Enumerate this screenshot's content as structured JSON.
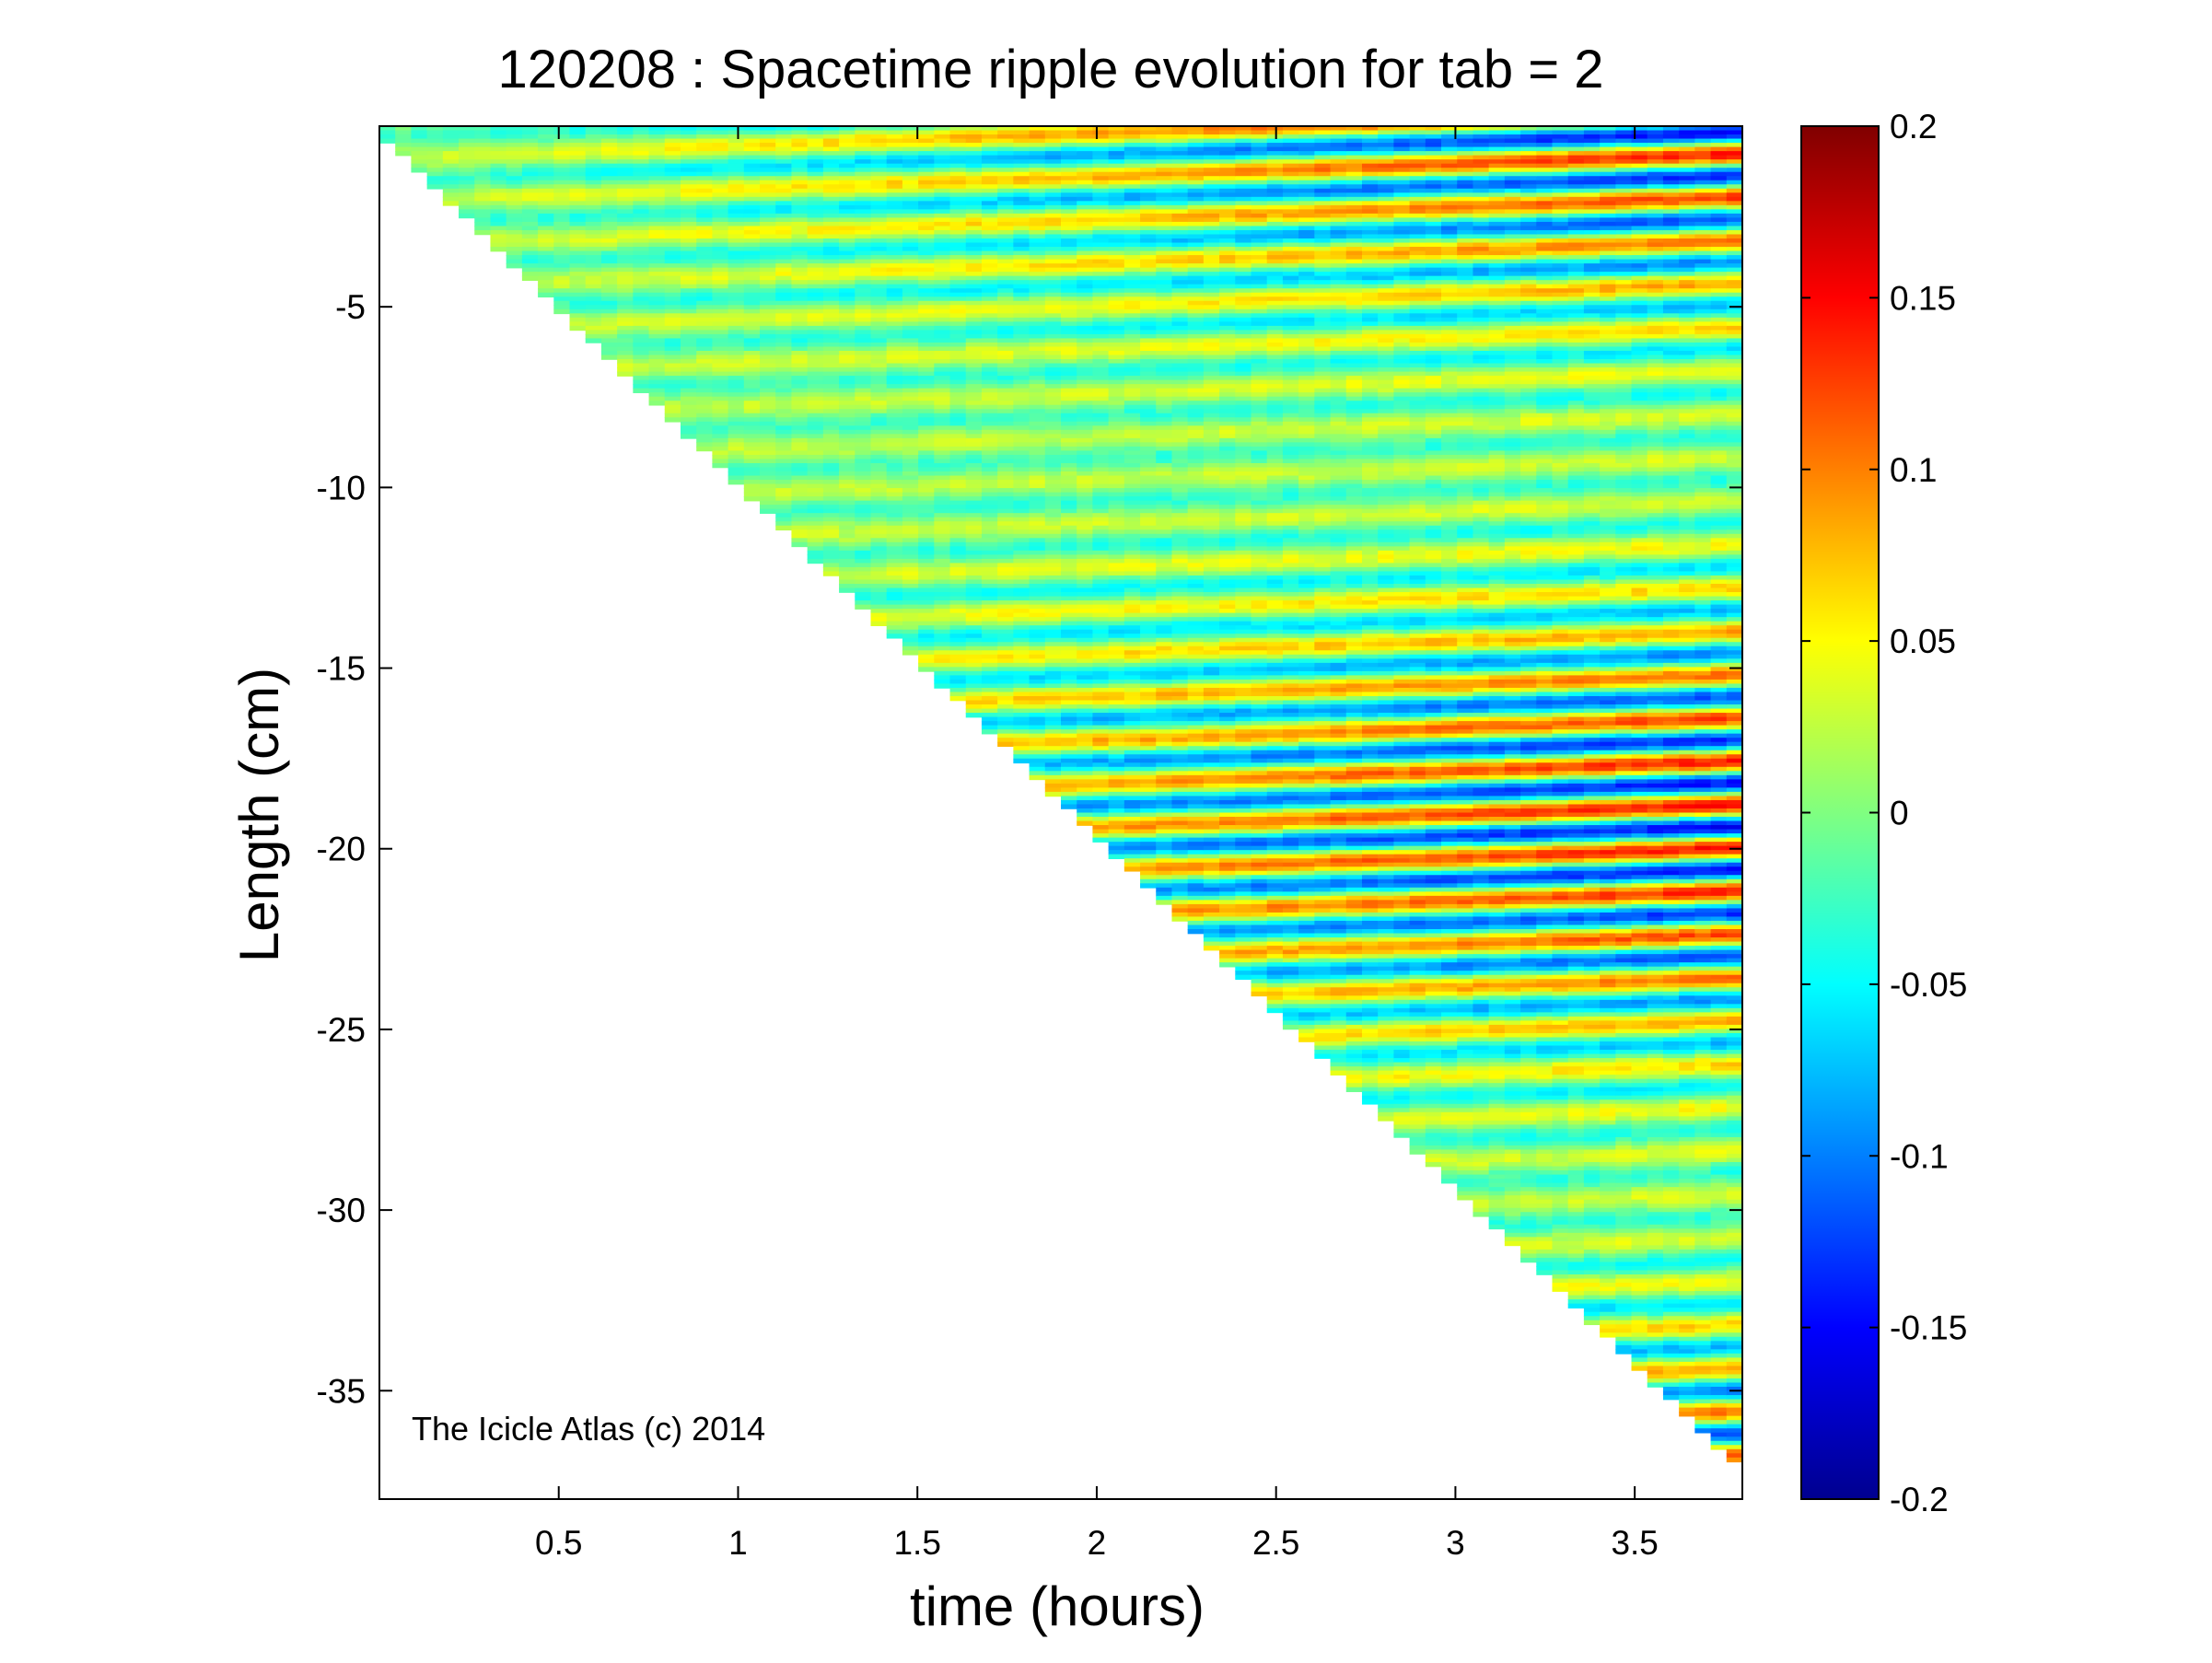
{
  "chart_data": {
    "type": "heatmap",
    "title": "120208 : Spacetime ripple evolution for tab = 2",
    "xlabel": "time (hours)",
    "ylabel": "Length (cm)",
    "xlim": [
      0.0,
      3.8
    ],
    "ylim": [
      -38.0,
      0.0
    ],
    "x_ticks": [
      0.5,
      1,
      1.5,
      2,
      2.5,
      3,
      3.5
    ],
    "x_tick_labels": [
      "0.5",
      "1",
      "1.5",
      "2",
      "2.5",
      "3",
      "3.5"
    ],
    "y_ticks": [
      -5,
      -10,
      -15,
      -20,
      -25,
      -30,
      -35
    ],
    "y_tick_labels": [
      "-5",
      "-10",
      "-15",
      "-20",
      "-25",
      "-30",
      "-35"
    ],
    "colorbar": {
      "colormap": "jet",
      "clim": [
        -0.2,
        0.2
      ],
      "ticks": [
        0.2,
        0.15,
        0.1,
        0.05,
        0,
        -0.05,
        -0.1,
        -0.15,
        -0.2
      ],
      "tick_labels": [
        "0.2",
        "0.15",
        "0.1",
        "0.05",
        "0",
        "-0.05",
        "-0.1",
        "-0.15",
        "-0.2"
      ]
    },
    "data_region": {
      "description_free_boundary": [
        {
          "time": 0.0,
          "length": 0.0
        },
        {
          "time": 3.8,
          "length": -37.0
        }
      ]
    },
    "ripple_bands": {
      "spacing_cm": 1.2,
      "drift_cm_per_hour": 0.35,
      "amplitude_growth": "increases with time"
    },
    "annotation": "The Icicle Atlas (c) 2014",
    "grid": false,
    "legend": "none"
  }
}
